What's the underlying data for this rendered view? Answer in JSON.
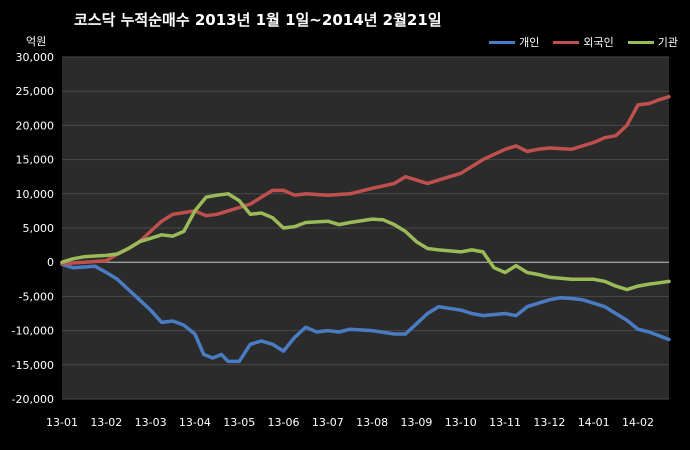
{
  "chart_data": {
    "type": "line",
    "title": "코스닥  누적순매수 2013년 1월 1일~2014년 2월21일",
    "y_unit_label": "억원",
    "ylim": [
      -20000,
      30000
    ],
    "yticks": [
      "30,000",
      "25,000",
      "20,000",
      "15,000",
      "10,000",
      "5,000",
      "0",
      "-5,000",
      "-10,000",
      "-15,000",
      "-20,000"
    ],
    "ytick_values": [
      30000,
      25000,
      20000,
      15000,
      10000,
      5000,
      0,
      -5000,
      -10000,
      -15000,
      -20000
    ],
    "xtick_labels": [
      "13-01",
      "13-02",
      "13-03",
      "13-04",
      "13-05",
      "13-06",
      "13-07",
      "13-08",
      "13-09",
      "13-10",
      "13-11",
      "13-12",
      "14-01",
      "14-02"
    ],
    "xlim": [
      0,
      13.7
    ],
    "grid": "horizontal",
    "legend_position": "top-right",
    "background": "#2b2b2b",
    "series": [
      {
        "name": "개인",
        "color": "#4a7cc4",
        "points": [
          [
            0,
            -300
          ],
          [
            0.25,
            -800
          ],
          [
            0.5,
            -700
          ],
          [
            0.75,
            -600
          ],
          [
            1,
            -1500
          ],
          [
            1.25,
            -2500
          ],
          [
            1.5,
            -4000
          ],
          [
            1.75,
            -5500
          ],
          [
            2,
            -7000
          ],
          [
            2.25,
            -8800
          ],
          [
            2.5,
            -8600
          ],
          [
            2.75,
            -9200
          ],
          [
            3,
            -10500
          ],
          [
            3.2,
            -13500
          ],
          [
            3.4,
            -14000
          ],
          [
            3.6,
            -13500
          ],
          [
            3.75,
            -14500
          ],
          [
            4,
            -14500
          ],
          [
            4.25,
            -12000
          ],
          [
            4.5,
            -11500
          ],
          [
            4.75,
            -12000
          ],
          [
            5,
            -13000
          ],
          [
            5.25,
            -11000
          ],
          [
            5.5,
            -9500
          ],
          [
            5.75,
            -10200
          ],
          [
            6,
            -10000
          ],
          [
            6.25,
            -10200
          ],
          [
            6.5,
            -9800
          ],
          [
            7,
            -10000
          ],
          [
            7.5,
            -10500
          ],
          [
            7.75,
            -10500
          ],
          [
            8,
            -9000
          ],
          [
            8.25,
            -7500
          ],
          [
            8.5,
            -6500
          ],
          [
            9,
            -7000
          ],
          [
            9.25,
            -7500
          ],
          [
            9.5,
            -7800
          ],
          [
            10,
            -7500
          ],
          [
            10.25,
            -7800
          ],
          [
            10.5,
            -6500
          ],
          [
            10.75,
            -6000
          ],
          [
            11,
            -5500
          ],
          [
            11.25,
            -5200
          ],
          [
            11.5,
            -5300
          ],
          [
            11.75,
            -5500
          ],
          [
            12,
            -6000
          ],
          [
            12.25,
            -6500
          ],
          [
            12.5,
            -7500
          ],
          [
            12.75,
            -8500
          ],
          [
            13,
            -9800
          ],
          [
            13.25,
            -10200
          ],
          [
            13.5,
            -10800
          ],
          [
            13.7,
            -11300
          ]
        ]
      },
      {
        "name": "외국인",
        "color": "#c0504d",
        "points": [
          [
            0,
            -200
          ],
          [
            0.5,
            0
          ],
          [
            1,
            200
          ],
          [
            1.25,
            1200
          ],
          [
            1.5,
            2000
          ],
          [
            1.75,
            3000
          ],
          [
            2,
            4500
          ],
          [
            2.25,
            6000
          ],
          [
            2.5,
            7000
          ],
          [
            3,
            7500
          ],
          [
            3.25,
            6800
          ],
          [
            3.5,
            7000
          ],
          [
            3.75,
            7500
          ],
          [
            4,
            8000
          ],
          [
            4.25,
            8500
          ],
          [
            4.5,
            9500
          ],
          [
            4.75,
            10500
          ],
          [
            5,
            10500
          ],
          [
            5.25,
            9800
          ],
          [
            5.5,
            10000
          ],
          [
            6,
            9800
          ],
          [
            6.5,
            10000
          ],
          [
            7,
            10800
          ],
          [
            7.5,
            11500
          ],
          [
            7.75,
            12500
          ],
          [
            8,
            12000
          ],
          [
            8.25,
            11500
          ],
          [
            8.5,
            12000
          ],
          [
            9,
            13000
          ],
          [
            9.5,
            15000
          ],
          [
            10,
            16500
          ],
          [
            10.25,
            17000
          ],
          [
            10.5,
            16200
          ],
          [
            10.75,
            16500
          ],
          [
            11,
            16700
          ],
          [
            11.5,
            16500
          ],
          [
            12,
            17500
          ],
          [
            12.25,
            18200
          ],
          [
            12.5,
            18500
          ],
          [
            12.75,
            20000
          ],
          [
            13,
            23000
          ],
          [
            13.25,
            23200
          ],
          [
            13.5,
            23800
          ],
          [
            13.7,
            24200
          ]
        ]
      },
      {
        "name": "기관",
        "color": "#9bbb59",
        "points": [
          [
            0,
            0
          ],
          [
            0.25,
            500
          ],
          [
            0.5,
            800
          ],
          [
            0.75,
            900
          ],
          [
            1,
            1000
          ],
          [
            1.25,
            1200
          ],
          [
            1.5,
            2000
          ],
          [
            1.75,
            3000
          ],
          [
            2,
            3500
          ],
          [
            2.25,
            4000
          ],
          [
            2.5,
            3800
          ],
          [
            2.75,
            4500
          ],
          [
            3,
            7500
          ],
          [
            3.25,
            9500
          ],
          [
            3.5,
            9800
          ],
          [
            3.75,
            10000
          ],
          [
            4,
            9000
          ],
          [
            4.25,
            7000
          ],
          [
            4.5,
            7200
          ],
          [
            4.75,
            6500
          ],
          [
            5,
            5000
          ],
          [
            5.25,
            5200
          ],
          [
            5.5,
            5800
          ],
          [
            6,
            6000
          ],
          [
            6.25,
            5500
          ],
          [
            6.5,
            5800
          ],
          [
            7,
            6300
          ],
          [
            7.25,
            6200
          ],
          [
            7.5,
            5500
          ],
          [
            7.75,
            4500
          ],
          [
            8,
            3000
          ],
          [
            8.25,
            2000
          ],
          [
            8.5,
            1800
          ],
          [
            9,
            1500
          ],
          [
            9.25,
            1800
          ],
          [
            9.5,
            1500
          ],
          [
            9.75,
            -800
          ],
          [
            10,
            -1500
          ],
          [
            10.25,
            -500
          ],
          [
            10.5,
            -1500
          ],
          [
            10.75,
            -1800
          ],
          [
            11,
            -2200
          ],
          [
            11.5,
            -2500
          ],
          [
            12,
            -2500
          ],
          [
            12.25,
            -2800
          ],
          [
            12.5,
            -3500
          ],
          [
            12.75,
            -4000
          ],
          [
            13,
            -3500
          ],
          [
            13.25,
            -3200
          ],
          [
            13.5,
            -3000
          ],
          [
            13.7,
            -2800
          ]
        ]
      }
    ]
  }
}
